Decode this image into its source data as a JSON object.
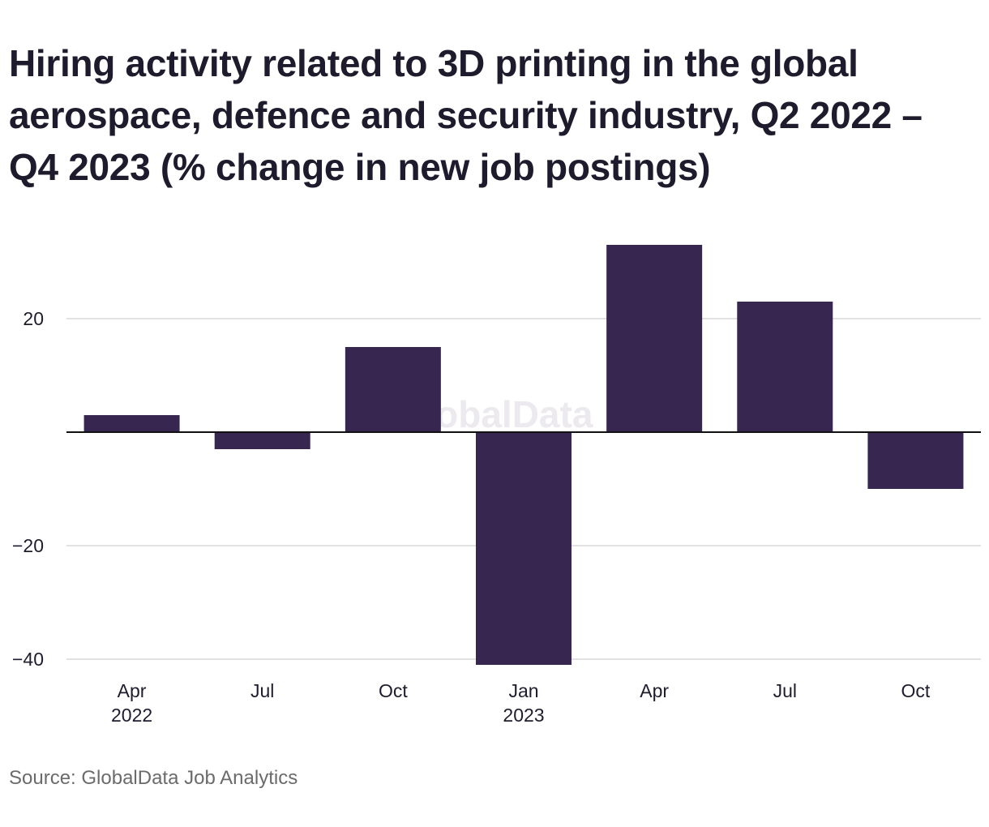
{
  "title": "Hiring activity related to 3D printing in the global aerospace, defence and security industry, Q2 2022 – Q4 2023 (% change in new job postings)",
  "source": "Source: GlobalData Job Analytics",
  "watermark": "GlobalData",
  "colors": {
    "bar": "#372650",
    "grid": "#d9d9d9",
    "zero_line": "#111111",
    "text": "#1f1c2e"
  },
  "chart_data": {
    "type": "bar",
    "categories": [
      "Apr 2022",
      "Jul 2022",
      "Oct 2022",
      "Jan 2023",
      "Apr 2023",
      "Jul 2023",
      "Oct 2023"
    ],
    "x_tick_labels": [
      {
        "line1": "Apr",
        "line2": "2022"
      },
      {
        "line1": "Jul",
        "line2": ""
      },
      {
        "line1": "Oct",
        "line2": ""
      },
      {
        "line1": "Jan",
        "line2": "2023"
      },
      {
        "line1": "Apr",
        "line2": ""
      },
      {
        "line1": "Jul",
        "line2": ""
      },
      {
        "line1": "Oct",
        "line2": ""
      }
    ],
    "values": [
      3,
      -3,
      15,
      -41,
      33,
      23,
      -10
    ],
    "y_ticks": [
      20,
      0,
      -20,
      -40
    ],
    "y_tick_labels": [
      "20",
      "",
      "−20",
      "−40"
    ],
    "ylim": [
      -41,
      33
    ],
    "xlabel": "",
    "ylabel": "",
    "grid": true,
    "legend": "none"
  }
}
